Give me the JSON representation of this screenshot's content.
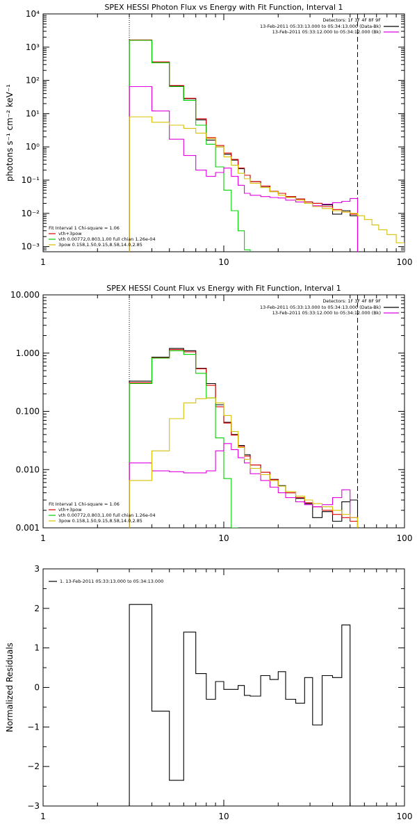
{
  "chart_data": [
    {
      "type": "line",
      "scale": "loglog",
      "title": "SPEX HESSI Photon Flux vs Energy with Fit Function, Interval 1",
      "ylabel": "photons s⁻¹ cm⁻² keV⁻¹",
      "xlim": [
        1,
        100
      ],
      "ylim": [
        0.0007,
        10000
      ],
      "xticks": [
        {
          "v": 1,
          "label": "1"
        },
        {
          "v": 10,
          "label": "10"
        },
        {
          "v": 100,
          "label": "100"
        }
      ],
      "yticks": [
        {
          "v": 0.001,
          "label": "10⁻³"
        },
        {
          "v": 0.01,
          "label": "10⁻²"
        },
        {
          "v": 0.1,
          "label": "10⁻¹"
        },
        {
          "v": 1,
          "label": "10⁰"
        },
        {
          "v": 10,
          "label": "10¹"
        },
        {
          "v": 100,
          "label": "10²"
        },
        {
          "v": 1000,
          "label": "10³"
        },
        {
          "v": 10000,
          "label": "10⁴"
        }
      ],
      "vlines": [
        {
          "x": 3.0,
          "style": "dotted"
        },
        {
          "x": 55,
          "style": "dashed"
        }
      ],
      "legend_topright": {
        "header": "Detectors: 1F 3F 4F 8F 9F",
        "entries": [
          {
            "text": "13-Feb-2011 05:33:13.000 to 05:34:13.000 (Data-Bk)",
            "color": "#000000"
          },
          {
            "text": "13-Feb-2011 05:33:12.000 to 05:34:12.000 (Bk)",
            "color": "#e000e0"
          }
        ]
      },
      "legend_bottomleft": {
        "header": "Fit Interval 1    Chi-square = 1.06",
        "entries": [
          {
            "text": "vth+3pow",
            "color": "#e00000"
          },
          {
            "text": "vth 0.00772,0.803,1.00  full chian 1.26e-04",
            "color": "#00d000"
          },
          {
            "text": "3pow 0.158,1.50,9.15,8.58,14.0,2.85",
            "color": "#d8c000"
          }
        ]
      },
      "edges": [
        3,
        4,
        5,
        6,
        7,
        8,
        9,
        10,
        11,
        12,
        13,
        14,
        16,
        18,
        20,
        22,
        25,
        28,
        31,
        35,
        40,
        45,
        50,
        55,
        60,
        66,
        72,
        80,
        90,
        100
      ],
      "series": [
        {
          "color": "#000000",
          "values": [
            1600,
            350,
            68,
            28,
            6.5,
            1.6,
            1.0,
            0.6,
            0.4,
            0.22,
            0.14,
            0.09,
            0.065,
            0.045,
            0.04,
            0.032,
            0.027,
            0.022,
            0.02,
            0.018,
            0.0095,
            0.012,
            0.0085
          ]
        },
        {
          "color": "#e00000",
          "values": [
            1650,
            360,
            70,
            29,
            7.0,
            1.9,
            1.1,
            0.65,
            0.42,
            0.23,
            0.14,
            0.09,
            0.066,
            0.046,
            0.04,
            0.032,
            0.027,
            0.022,
            0.02,
            0.016,
            0.013,
            0.011,
            0.0095
          ]
        },
        {
          "color": "#00d000",
          "values": [
            1600,
            340,
            65,
            25,
            4.5,
            1.2,
            0.25,
            0.05,
            0.012,
            0.003,
            0.0008
          ]
        },
        {
          "color": "#e000e0",
          "values": [
            65,
            12,
            1.7,
            0.55,
            0.2,
            0.13,
            0.17,
            0.23,
            0.13,
            0.07,
            0.04,
            0.035,
            0.032,
            0.03,
            0.029,
            0.025,
            0.022,
            0.02,
            0.017,
            0.019,
            0.021,
            0.023,
            0.028
          ]
        },
        {
          "color": "#d8c000",
          "values": [
            8,
            5.5,
            4.5,
            3.6,
            2.6,
            1.8,
            1.0,
            0.5,
            0.28,
            0.16,
            0.11,
            0.08,
            0.06,
            0.045,
            0.035,
            0.03,
            0.025,
            0.02,
            0.016,
            0.014,
            0.012,
            0.011,
            0.01,
            0.0085,
            0.0065,
            0.0045,
            0.0032,
            0.0023,
            0.0013
          ]
        }
      ]
    },
    {
      "type": "line",
      "scale": "loglog",
      "title": "SPEX HESSI Count Flux vs Energy with Fit Function, Interval 1",
      "ylabel": "",
      "xlim": [
        1,
        100
      ],
      "ylim": [
        0.001,
        10
      ],
      "xticks": [
        {
          "v": 1,
          "label": "1"
        },
        {
          "v": 10,
          "label": "10"
        },
        {
          "v": 100,
          "label": "100"
        }
      ],
      "yticks": [
        {
          "v": 0.001,
          "label": "0.001"
        },
        {
          "v": 0.01,
          "label": "0.010"
        },
        {
          "v": 0.1,
          "label": "0.100"
        },
        {
          "v": 1,
          "label": "1.000"
        },
        {
          "v": 10,
          "label": "10.000"
        }
      ],
      "vlines": [
        {
          "x": 3.0,
          "style": "dotted"
        },
        {
          "x": 55,
          "style": "dashed"
        }
      ],
      "legend_topright": {
        "header": "Detectors: 1F 3F 4F 8F 9F",
        "entries": [
          {
            "text": "13-Feb-2011 05:33:13.000 to 05:34:13.000 (Data-Bk)",
            "color": "#000000"
          },
          {
            "text": "13-Feb-2011 05:33:12.000 to 05:34:12.000 (Bk)",
            "color": "#e000e0"
          }
        ]
      },
      "legend_bottomleft": {
        "header": "Fit Interval 1    Chi-square = 1.06",
        "entries": [
          {
            "text": "vth+3pow",
            "color": "#e00000"
          },
          {
            "text": "vth 0.00772,0.803,1.00  full chian 1.26e-04",
            "color": "#00d000"
          },
          {
            "text": "3pow 0.158,1.50,9.15,8.58,14.0,2.85",
            "color": "#d8c000"
          }
        ]
      },
      "edges": [
        3,
        4,
        5,
        6,
        7,
        8,
        9,
        10,
        11,
        12,
        13,
        14,
        16,
        18,
        20,
        22,
        25,
        28,
        31,
        35,
        40,
        45,
        50,
        55
      ],
      "series": [
        {
          "color": "#000000",
          "values": [
            0.33,
            0.85,
            1.2,
            1.1,
            0.55,
            0.3,
            0.13,
            0.065,
            0.04,
            0.026,
            0.018,
            0.012,
            0.009,
            0.0068,
            0.0053,
            0.004,
            0.0032,
            0.0026,
            0.0015,
            0.0019,
            0.0013,
            0.0028,
            0.003
          ]
        },
        {
          "color": "#e00000",
          "values": [
            0.31,
            0.83,
            1.15,
            1.05,
            0.54,
            0.28,
            0.12,
            0.063,
            0.039,
            0.025,
            0.017,
            0.012,
            0.009,
            0.0067,
            0.0052,
            0.004,
            0.0033,
            0.0027,
            0.0023,
            0.002,
            0.0017,
            0.0015,
            0.0013
          ]
        },
        {
          "color": "#00d000",
          "values": [
            0.3,
            0.82,
            1.1,
            0.95,
            0.45,
            0.17,
            0.035,
            0.007,
            0.0009
          ]
        },
        {
          "color": "#e000e0",
          "values": [
            0.013,
            0.0095,
            0.0092,
            0.0088,
            0.0088,
            0.0095,
            0.021,
            0.028,
            0.022,
            0.016,
            0.013,
            0.0085,
            0.0065,
            0.005,
            0.004,
            0.0033,
            0.0028,
            0.0025,
            0.0023,
            0.0025,
            0.0033,
            0.0045,
            0.0015
          ]
        },
        {
          "color": "#d8c000",
          "values": [
            0.0065,
            0.021,
            0.075,
            0.14,
            0.165,
            0.17,
            0.14,
            0.085,
            0.045,
            0.024,
            0.015,
            0.0105,
            0.0082,
            0.0065,
            0.0052,
            0.0042,
            0.0035,
            0.003,
            0.0026,
            0.0023,
            0.002,
            0.0017,
            0.0015
          ]
        }
      ]
    },
    {
      "type": "line",
      "scale": "logx",
      "title": "",
      "ylabel": "Normalized Residuals",
      "xlim": [
        1,
        100
      ],
      "ylim": [
        -3,
        3
      ],
      "xticks": [
        {
          "v": 1,
          "label": "1"
        },
        {
          "v": 10,
          "label": "10"
        },
        {
          "v": 100,
          "label": "100"
        }
      ],
      "yticks": [
        {
          "v": -3,
          "label": "−3"
        },
        {
          "v": -2,
          "label": "−2"
        },
        {
          "v": -1,
          "label": "−1"
        },
        {
          "v": 0,
          "label": "0"
        },
        {
          "v": 1,
          "label": "1"
        },
        {
          "v": 2,
          "label": "2"
        },
        {
          "v": 3,
          "label": "3"
        }
      ],
      "legend_topleft": {
        "entries": [
          {
            "text": "1. 13-Feb-2011 05:33:13.000 to 05:34:13.000",
            "color": "#000000"
          }
        ]
      },
      "edges": [
        3,
        4,
        5,
        6,
        7,
        8,
        9,
        10,
        11,
        12,
        13,
        14,
        16,
        18,
        20,
        22,
        25,
        28,
        31,
        35,
        40,
        45,
        50,
        55
      ],
      "series": [
        {
          "color": "#000000",
          "values": [
            2.1,
            -0.6,
            -2.35,
            1.4,
            0.35,
            -0.3,
            0.15,
            -0.05,
            -0.05,
            0.05,
            -0.2,
            -0.22,
            0.3,
            0.2,
            0.4,
            -0.3,
            -0.4,
            0.25,
            -0.95,
            0.3,
            0.25,
            1.58
          ]
        }
      ]
    }
  ]
}
